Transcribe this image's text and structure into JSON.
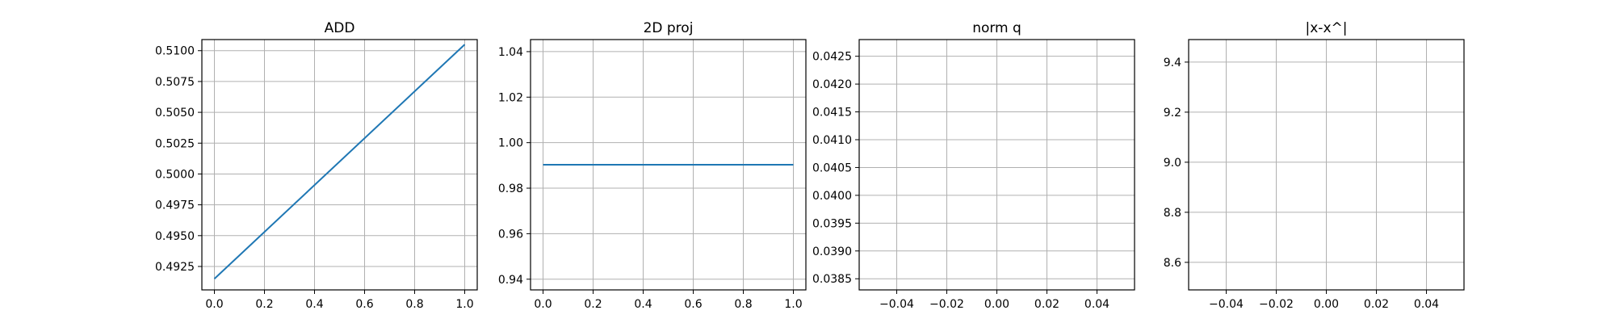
{
  "chart_data": [
    {
      "type": "line",
      "title": "ADD",
      "xlabel": "",
      "ylabel": "",
      "xlim": [
        -0.05,
        1.05
      ],
      "ylim": [
        0.4906,
        0.5109
      ],
      "xticks": [
        0.0,
        0.2,
        0.4,
        0.6,
        0.8,
        1.0
      ],
      "xtick_labels": [
        "0.0",
        "0.2",
        "0.4",
        "0.6",
        "0.8",
        "1.0"
      ],
      "yticks": [
        0.4925,
        0.495,
        0.4975,
        0.5,
        0.5025,
        0.505,
        0.5075,
        0.51
      ],
      "ytick_labels": [
        "0.4925",
        "0.4950",
        "0.4975",
        "0.5000",
        "0.5025",
        "0.5050",
        "0.5075",
        "0.5100"
      ],
      "grid": true,
      "series": [
        {
          "x": [
            0.0,
            1.0
          ],
          "y": [
            0.4915,
            0.5105
          ],
          "color": "#1f77b4"
        }
      ]
    },
    {
      "type": "line",
      "title": "2D proj",
      "xlabel": "",
      "ylabel": "",
      "xlim": [
        -0.05,
        1.05
      ],
      "ylim": [
        0.9353,
        1.0453
      ],
      "xticks": [
        0.0,
        0.2,
        0.4,
        0.6,
        0.8,
        1.0
      ],
      "xtick_labels": [
        "0.0",
        "0.2",
        "0.4",
        "0.6",
        "0.8",
        "1.0"
      ],
      "yticks": [
        0.94,
        0.96,
        0.98,
        1.0,
        1.02,
        1.04
      ],
      "ytick_labels": [
        "0.94",
        "0.96",
        "0.98",
        "1.00",
        "1.02",
        "1.04"
      ],
      "grid": true,
      "series": [
        {
          "x": [
            0.0,
            1.0
          ],
          "y": [
            0.9903,
            0.9903
          ],
          "color": "#1f77b4"
        }
      ]
    },
    {
      "type": "line",
      "title": "norm q",
      "xlabel": "",
      "ylabel": "",
      "xlim": [
        -0.055,
        0.055
      ],
      "ylim": [
        0.0383,
        0.0428
      ],
      "xticks": [
        -0.04,
        -0.02,
        0.0,
        0.02,
        0.04
      ],
      "xtick_labels": [
        "−0.04",
        "−0.02",
        "0.00",
        "0.02",
        "0.04"
      ],
      "yticks": [
        0.0385,
        0.039,
        0.0395,
        0.04,
        0.0405,
        0.041,
        0.0415,
        0.042,
        0.0425
      ],
      "ytick_labels": [
        "0.0385",
        "0.0390",
        "0.0395",
        "0.0400",
        "0.0405",
        "0.0410",
        "0.0415",
        "0.0420",
        "0.0425"
      ],
      "grid": true,
      "series": []
    },
    {
      "type": "line",
      "title": "|x-x^|",
      "xlabel": "",
      "ylabel": "",
      "xlim": [
        -0.055,
        0.055
      ],
      "ylim": [
        8.49,
        9.49
      ],
      "xticks": [
        -0.04,
        -0.02,
        0.0,
        0.02,
        0.04
      ],
      "xtick_labels": [
        "−0.04",
        "−0.02",
        "0.00",
        "0.02",
        "0.04"
      ],
      "yticks": [
        8.6,
        8.8,
        9.0,
        9.2,
        9.4
      ],
      "ytick_labels": [
        "8.6",
        "8.8",
        "9.0",
        "9.2",
        "9.4"
      ],
      "grid": true,
      "series": []
    }
  ]
}
